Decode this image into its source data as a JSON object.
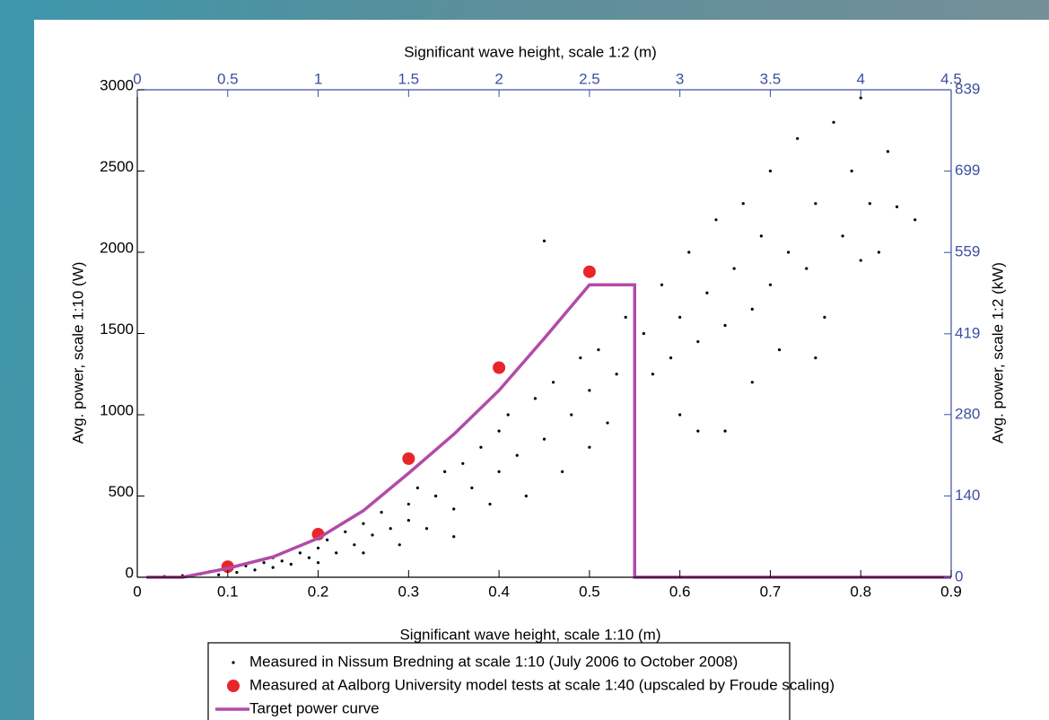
{
  "chart_data": {
    "type": "scatter",
    "xlabel": "Significant wave height, scale 1:10 (m)",
    "x2label": "Significant wave height, scale 1:2 (m)",
    "ylabel": "Avg. power, scale 1:10 (W)",
    "y2label": "Avg. power, scale 1:2 (kW)",
    "xlim": [
      0,
      0.9
    ],
    "xticks": [
      0,
      0.1,
      0.2,
      0.3,
      0.4,
      0.5,
      0.6,
      0.7,
      0.8,
      0.9
    ],
    "x2lim": [
      0,
      4.5
    ],
    "x2ticks": [
      0,
      0.5,
      1,
      1.5,
      2,
      2.5,
      3,
      3.5,
      4,
      4.5
    ],
    "ylim": [
      0,
      3000
    ],
    "yticks": [
      0,
      500,
      1000,
      1500,
      2000,
      2500,
      3000
    ],
    "y2lim": [
      0,
      839
    ],
    "y2ticks": [
      0,
      140,
      280,
      419,
      559,
      699,
      839
    ],
    "secondary_color": "#3d4fa3",
    "series": [
      {
        "name": "Measured in Nissum Bredning at scale 1:10 (July 2006 to October 2008)",
        "type": "scatter",
        "color": "#000000",
        "x": [
          0.03,
          0.05,
          0.07,
          0.08,
          0.09,
          0.1,
          0.11,
          0.12,
          0.13,
          0.14,
          0.15,
          0.15,
          0.16,
          0.17,
          0.18,
          0.19,
          0.2,
          0.2,
          0.21,
          0.22,
          0.23,
          0.24,
          0.25,
          0.25,
          0.26,
          0.27,
          0.28,
          0.29,
          0.3,
          0.3,
          0.31,
          0.32,
          0.33,
          0.34,
          0.35,
          0.35,
          0.36,
          0.37,
          0.38,
          0.39,
          0.4,
          0.4,
          0.41,
          0.42,
          0.43,
          0.44,
          0.45,
          0.45,
          0.46,
          0.47,
          0.48,
          0.49,
          0.5,
          0.5,
          0.51,
          0.52,
          0.53,
          0.54,
          0.55,
          0.55,
          0.56,
          0.57,
          0.58,
          0.59,
          0.6,
          0.6,
          0.61,
          0.62,
          0.63,
          0.64,
          0.65,
          0.65,
          0.66,
          0.67,
          0.68,
          0.69,
          0.7,
          0.7,
          0.71,
          0.72,
          0.73,
          0.74,
          0.75,
          0.76,
          0.77,
          0.78,
          0.79,
          0.8,
          0.8,
          0.81,
          0.83,
          0.84,
          0.86,
          0.82,
          0.75,
          0.68,
          0.62
        ],
        "y": [
          5,
          10,
          20,
          35,
          15,
          40,
          30,
          70,
          45,
          90,
          60,
          120,
          100,
          80,
          150,
          120,
          180,
          90,
          230,
          150,
          280,
          200,
          330,
          150,
          260,
          400,
          300,
          200,
          450,
          350,
          550,
          300,
          500,
          650,
          420,
          250,
          700,
          550,
          800,
          450,
          900,
          650,
          1000,
          750,
          500,
          1100,
          850,
          2070,
          1200,
          650,
          1000,
          1350,
          1150,
          800,
          1400,
          950,
          1250,
          1600,
          1100,
          700,
          1500,
          1250,
          1800,
          1350,
          1600,
          1000,
          2000,
          1450,
          1750,
          2200,
          1550,
          900,
          1900,
          2300,
          1650,
          2100,
          1800,
          2500,
          1400,
          2000,
          2700,
          1900,
          2300,
          1600,
          2800,
          2100,
          2500,
          1950,
          2950,
          2300,
          2620,
          2280,
          2200,
          2000,
          1350,
          1200,
          900
        ]
      },
      {
        "name": "Measured at Aalborg University model tests at scale 1:40 (upscaled by Froude scaling)",
        "type": "dots",
        "color": "#e8262a",
        "x": [
          0.1,
          0.2,
          0.3,
          0.4,
          0.5
        ],
        "y": [
          65,
          265,
          730,
          1290,
          1880
        ]
      },
      {
        "name": "Target power curve",
        "type": "line",
        "color": "#b34aa8",
        "x": [
          0.01,
          0.05,
          0.1,
          0.15,
          0.2,
          0.25,
          0.3,
          0.35,
          0.4,
          0.45,
          0.5,
          0.55,
          0.55,
          0.9
        ],
        "y": [
          0,
          0,
          55,
          125,
          240,
          410,
          640,
          880,
          1150,
          1470,
          1800,
          1800,
          0,
          0
        ]
      }
    ]
  }
}
